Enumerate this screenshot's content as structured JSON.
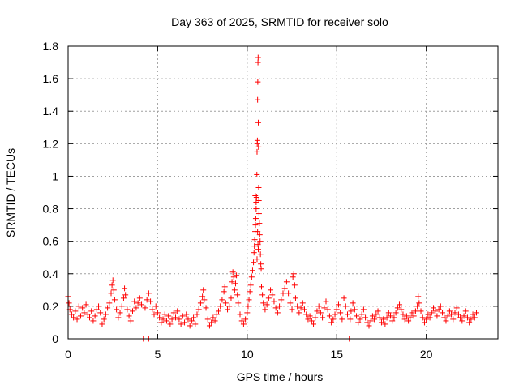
{
  "chart_data": {
    "type": "scatter",
    "title": "Day 363 of 2025, SRMTID for receiver solo",
    "xlabel": "GPS time / hours",
    "ylabel": "SRMTID / TECUs",
    "xlim": [
      0,
      24
    ],
    "ylim": [
      0,
      1.8
    ],
    "x_ticks": [
      0,
      5,
      10,
      15,
      20
    ],
    "x_tick_labels": [
      "0",
      "5",
      "10",
      "15",
      "20"
    ],
    "y_ticks": [
      0,
      0.2,
      0.4,
      0.6,
      0.8,
      1.0,
      1.2,
      1.4,
      1.6,
      1.8
    ],
    "y_tick_labels": [
      "0",
      "0.2",
      "0.4",
      "0.6",
      "0.8",
      "1",
      "1.2",
      "1.4",
      "1.6",
      "1.8"
    ],
    "grid": true,
    "marker": "plus",
    "marker_color": "#ff0000",
    "series": [
      {
        "name": "SRMTID",
        "points": [
          [
            0.0,
            0.26
          ],
          [
            0.05,
            0.22
          ],
          [
            0.1,
            0.18
          ],
          [
            0.2,
            0.15
          ],
          [
            0.3,
            0.13
          ],
          [
            0.4,
            0.17
          ],
          [
            0.5,
            0.12
          ],
          [
            0.6,
            0.2
          ],
          [
            0.7,
            0.14
          ],
          [
            0.8,
            0.19
          ],
          [
            0.9,
            0.16
          ],
          [
            1.0,
            0.21
          ],
          [
            1.1,
            0.15
          ],
          [
            1.2,
            0.13
          ],
          [
            1.3,
            0.17
          ],
          [
            1.4,
            0.11
          ],
          [
            1.5,
            0.14
          ],
          [
            1.6,
            0.18
          ],
          [
            1.7,
            0.2
          ],
          [
            1.8,
            0.16
          ],
          [
            1.9,
            0.09
          ],
          [
            2.0,
            0.12
          ],
          [
            2.1,
            0.15
          ],
          [
            2.2,
            0.19
          ],
          [
            2.3,
            0.22
          ],
          [
            2.4,
            0.28
          ],
          [
            2.45,
            0.33
          ],
          [
            2.5,
            0.36
          ],
          [
            2.55,
            0.3
          ],
          [
            2.6,
            0.24
          ],
          [
            2.7,
            0.18
          ],
          [
            2.8,
            0.13
          ],
          [
            2.9,
            0.16
          ],
          [
            3.0,
            0.2
          ],
          [
            3.1,
            0.25
          ],
          [
            3.15,
            0.31
          ],
          [
            3.2,
            0.27
          ],
          [
            3.3,
            0.18
          ],
          [
            3.4,
            0.14
          ],
          [
            3.5,
            0.11
          ],
          [
            3.6,
            0.17
          ],
          [
            3.7,
            0.23
          ],
          [
            3.8,
            0.19
          ],
          [
            3.9,
            0.22
          ],
          [
            4.0,
            0.25
          ],
          [
            4.1,
            0.21
          ],
          [
            4.2,
            0.0
          ],
          [
            4.3,
            0.19
          ],
          [
            4.4,
            0.24
          ],
          [
            4.5,
            0.0
          ],
          [
            4.5,
            0.28
          ],
          [
            4.6,
            0.23
          ],
          [
            4.7,
            0.18
          ],
          [
            4.8,
            0.15
          ],
          [
            4.9,
            0.2
          ],
          [
            5.0,
            0.16
          ],
          [
            5.1,
            0.13
          ],
          [
            5.2,
            0.1
          ],
          [
            5.3,
            0.12
          ],
          [
            5.4,
            0.15
          ],
          [
            5.5,
            0.11
          ],
          [
            5.6,
            0.14
          ],
          [
            5.7,
            0.09
          ],
          [
            5.8,
            0.12
          ],
          [
            5.9,
            0.16
          ],
          [
            6.0,
            0.13
          ],
          [
            6.1,
            0.17
          ],
          [
            6.2,
            0.12
          ],
          [
            6.3,
            0.09
          ],
          [
            6.4,
            0.14
          ],
          [
            6.5,
            0.1
          ],
          [
            6.6,
            0.15
          ],
          [
            6.7,
            0.12
          ],
          [
            6.8,
            0.08
          ],
          [
            6.9,
            0.11
          ],
          [
            7.0,
            0.13
          ],
          [
            7.1,
            0.09
          ],
          [
            7.2,
            0.15
          ],
          [
            7.3,
            0.18
          ],
          [
            7.4,
            0.22
          ],
          [
            7.5,
            0.26
          ],
          [
            7.55,
            0.3
          ],
          [
            7.6,
            0.24
          ],
          [
            7.7,
            0.19
          ],
          [
            7.8,
            0.12
          ],
          [
            7.9,
            0.08
          ],
          [
            8.0,
            0.1
          ],
          [
            8.1,
            0.13
          ],
          [
            8.2,
            0.11
          ],
          [
            8.3,
            0.15
          ],
          [
            8.4,
            0.17
          ],
          [
            8.5,
            0.2
          ],
          [
            8.6,
            0.24
          ],
          [
            8.7,
            0.29
          ],
          [
            8.75,
            0.32
          ],
          [
            8.8,
            0.22
          ],
          [
            8.9,
            0.18
          ],
          [
            9.0,
            0.2
          ],
          [
            9.1,
            0.25
          ],
          [
            9.15,
            0.35
          ],
          [
            9.2,
            0.41
          ],
          [
            9.25,
            0.38
          ],
          [
            9.3,
            0.3
          ],
          [
            9.35,
            0.34
          ],
          [
            9.4,
            0.39
          ],
          [
            9.45,
            0.27
          ],
          [
            9.5,
            0.22
          ],
          [
            9.6,
            0.15
          ],
          [
            9.7,
            0.11
          ],
          [
            9.8,
            0.09
          ],
          [
            9.9,
            0.12
          ],
          [
            10.0,
            0.16
          ],
          [
            10.05,
            0.2
          ],
          [
            10.1,
            0.24
          ],
          [
            10.15,
            0.29
          ],
          [
            10.2,
            0.33
          ],
          [
            10.25,
            0.38
          ],
          [
            10.3,
            0.42
          ],
          [
            10.35,
            0.47
          ],
          [
            10.38,
            0.53
          ],
          [
            10.4,
            0.57
          ],
          [
            10.42,
            0.61
          ],
          [
            10.44,
            0.66
          ],
          [
            10.46,
            0.7
          ],
          [
            10.48,
            0.74
          ],
          [
            10.5,
            0.8
          ],
          [
            10.5,
            0.84
          ],
          [
            10.52,
            0.87
          ],
          [
            10.54,
            1.01
          ],
          [
            10.55,
            1.15
          ],
          [
            10.56,
            1.2
          ],
          [
            10.57,
            1.22
          ],
          [
            10.58,
            1.47
          ],
          [
            10.59,
            1.58
          ],
          [
            10.6,
            1.7
          ],
          [
            10.61,
            1.73
          ],
          [
            10.62,
            1.33
          ],
          [
            10.63,
            1.18
          ],
          [
            10.64,
            0.93
          ],
          [
            10.65,
            0.85
          ],
          [
            10.66,
            0.77
          ],
          [
            10.68,
            0.71
          ],
          [
            10.7,
            0.64
          ],
          [
            10.72,
            0.6
          ],
          [
            10.74,
            0.52
          ],
          [
            10.76,
            0.46
          ],
          [
            10.78,
            0.43
          ],
          [
            10.6,
            0.58
          ],
          [
            10.55,
            0.49
          ],
          [
            10.58,
            0.66
          ],
          [
            10.62,
            0.55
          ],
          [
            10.45,
            0.88
          ],
          [
            10.8,
            0.32
          ],
          [
            10.85,
            0.27
          ],
          [
            10.9,
            0.22
          ],
          [
            11.0,
            0.18
          ],
          [
            11.1,
            0.21
          ],
          [
            11.2,
            0.25
          ],
          [
            11.3,
            0.3
          ],
          [
            11.4,
            0.27
          ],
          [
            11.5,
            0.23
          ],
          [
            11.6,
            0.19
          ],
          [
            11.7,
            0.16
          ],
          [
            11.8,
            0.2
          ],
          [
            11.9,
            0.24
          ],
          [
            12.0,
            0.28
          ],
          [
            12.1,
            0.31
          ],
          [
            12.2,
            0.35
          ],
          [
            12.3,
            0.28
          ],
          [
            12.4,
            0.22
          ],
          [
            12.5,
            0.18
          ],
          [
            12.55,
            0.38
          ],
          [
            12.6,
            0.4
          ],
          [
            12.65,
            0.33
          ],
          [
            12.7,
            0.25
          ],
          [
            12.8,
            0.2
          ],
          [
            12.9,
            0.16
          ],
          [
            13.0,
            0.19
          ],
          [
            13.1,
            0.22
          ],
          [
            13.2,
            0.18
          ],
          [
            13.3,
            0.15
          ],
          [
            13.4,
            0.12
          ],
          [
            13.5,
            0.14
          ],
          [
            13.6,
            0.11
          ],
          [
            13.7,
            0.09
          ],
          [
            13.8,
            0.13
          ],
          [
            13.9,
            0.17
          ],
          [
            14.0,
            0.2
          ],
          [
            14.1,
            0.16
          ],
          [
            14.2,
            0.13
          ],
          [
            14.3,
            0.19
          ],
          [
            14.4,
            0.23
          ],
          [
            14.5,
            0.18
          ],
          [
            14.6,
            0.14
          ],
          [
            14.7,
            0.1
          ],
          [
            14.8,
            0.12
          ],
          [
            14.9,
            0.15
          ],
          [
            15.0,
            0.18
          ],
          [
            15.1,
            0.21
          ],
          [
            15.2,
            0.16
          ],
          [
            15.3,
            0.12
          ],
          [
            15.4,
            0.25
          ],
          [
            15.5,
            0.2
          ],
          [
            15.6,
            0.15
          ],
          [
            15.7,
            0.0
          ],
          [
            15.75,
            0.12
          ],
          [
            15.8,
            0.17
          ],
          [
            15.9,
            0.22
          ],
          [
            16.0,
            0.18
          ],
          [
            16.1,
            0.14
          ],
          [
            16.2,
            0.1
          ],
          [
            16.3,
            0.12
          ],
          [
            16.4,
            0.15
          ],
          [
            16.5,
            0.18
          ],
          [
            16.6,
            0.13
          ],
          [
            16.7,
            0.1
          ],
          [
            16.8,
            0.08
          ],
          [
            16.9,
            0.11
          ],
          [
            17.0,
            0.14
          ],
          [
            17.1,
            0.12
          ],
          [
            17.2,
            0.15
          ],
          [
            17.3,
            0.17
          ],
          [
            17.4,
            0.13
          ],
          [
            17.5,
            0.1
          ],
          [
            17.6,
            0.12
          ],
          [
            17.7,
            0.09
          ],
          [
            17.8,
            0.13
          ],
          [
            17.9,
            0.16
          ],
          [
            18.0,
            0.14
          ],
          [
            18.1,
            0.11
          ],
          [
            18.2,
            0.13
          ],
          [
            18.3,
            0.16
          ],
          [
            18.4,
            0.19
          ],
          [
            18.5,
            0.21
          ],
          [
            18.6,
            0.18
          ],
          [
            18.7,
            0.15
          ],
          [
            18.8,
            0.12
          ],
          [
            18.9,
            0.14
          ],
          [
            19.0,
            0.11
          ],
          [
            19.1,
            0.13
          ],
          [
            19.2,
            0.16
          ],
          [
            19.3,
            0.14
          ],
          [
            19.4,
            0.17
          ],
          [
            19.5,
            0.2
          ],
          [
            19.55,
            0.26
          ],
          [
            19.6,
            0.22
          ],
          [
            19.7,
            0.17
          ],
          [
            19.8,
            0.13
          ],
          [
            19.9,
            0.1
          ],
          [
            20.0,
            0.12
          ],
          [
            20.1,
            0.15
          ],
          [
            20.2,
            0.13
          ],
          [
            20.3,
            0.16
          ],
          [
            20.4,
            0.19
          ],
          [
            20.5,
            0.17
          ],
          [
            20.6,
            0.14
          ],
          [
            20.7,
            0.18
          ],
          [
            20.8,
            0.2
          ],
          [
            20.9,
            0.16
          ],
          [
            21.0,
            0.13
          ],
          [
            21.1,
            0.11
          ],
          [
            21.2,
            0.14
          ],
          [
            21.3,
            0.17
          ],
          [
            21.4,
            0.15
          ],
          [
            21.5,
            0.12
          ],
          [
            21.6,
            0.16
          ],
          [
            21.7,
            0.19
          ],
          [
            21.8,
            0.15
          ],
          [
            21.9,
            0.13
          ],
          [
            22.0,
            0.11
          ],
          [
            22.1,
            0.14
          ],
          [
            22.2,
            0.17
          ],
          [
            22.3,
            0.13
          ],
          [
            22.4,
            0.1
          ],
          [
            22.5,
            0.12
          ],
          [
            22.6,
            0.15
          ],
          [
            22.7,
            0.13
          ],
          [
            22.8,
            0.16
          ]
        ]
      }
    ]
  }
}
